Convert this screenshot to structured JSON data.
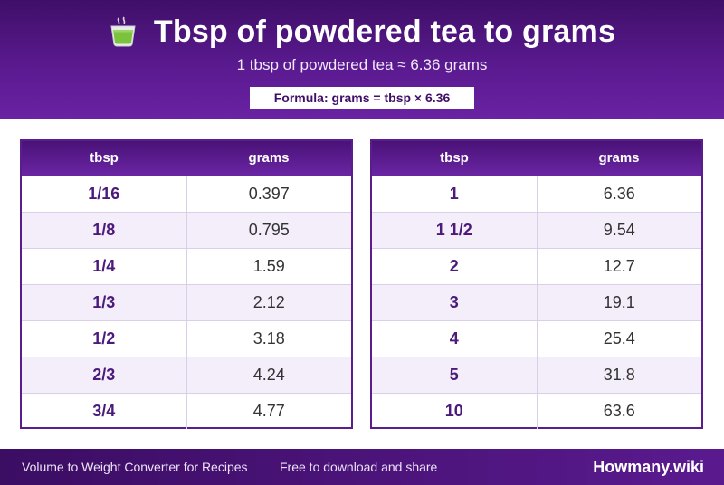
{
  "header": {
    "title": "Tbsp of powdered tea to grams",
    "subtitle": "1 tbsp of powdered tea ≈ 6.36 grams",
    "formula": "Formula: grams = tbsp × 6.36",
    "icon": "tea-cup-icon"
  },
  "tables": [
    {
      "col_tbsp": "tbsp",
      "col_grams": "grams",
      "rows": [
        {
          "tbsp": "1/16",
          "grams": "0.397"
        },
        {
          "tbsp": "1/8",
          "grams": "0.795"
        },
        {
          "tbsp": "1/4",
          "grams": "1.59"
        },
        {
          "tbsp": "1/3",
          "grams": "2.12"
        },
        {
          "tbsp": "1/2",
          "grams": "3.18"
        },
        {
          "tbsp": "2/3",
          "grams": "4.24"
        },
        {
          "tbsp": "3/4",
          "grams": "4.77"
        }
      ]
    },
    {
      "col_tbsp": "tbsp",
      "col_grams": "grams",
      "rows": [
        {
          "tbsp": "1",
          "grams": "6.36"
        },
        {
          "tbsp": "1 1/2",
          "grams": "9.54"
        },
        {
          "tbsp": "2",
          "grams": "12.7"
        },
        {
          "tbsp": "3",
          "grams": "19.1"
        },
        {
          "tbsp": "4",
          "grams": "25.4"
        },
        {
          "tbsp": "5",
          "grams": "31.8"
        },
        {
          "tbsp": "10",
          "grams": "63.6"
        }
      ]
    }
  ],
  "footer": {
    "left": "Volume to Weight Converter for Recipes",
    "middle": "Free to download and share",
    "brand": "Howmany.wiki"
  },
  "colors": {
    "primary": "#5a1a8f",
    "dark": "#3f0f68",
    "row_alt": "#f3eefa"
  }
}
